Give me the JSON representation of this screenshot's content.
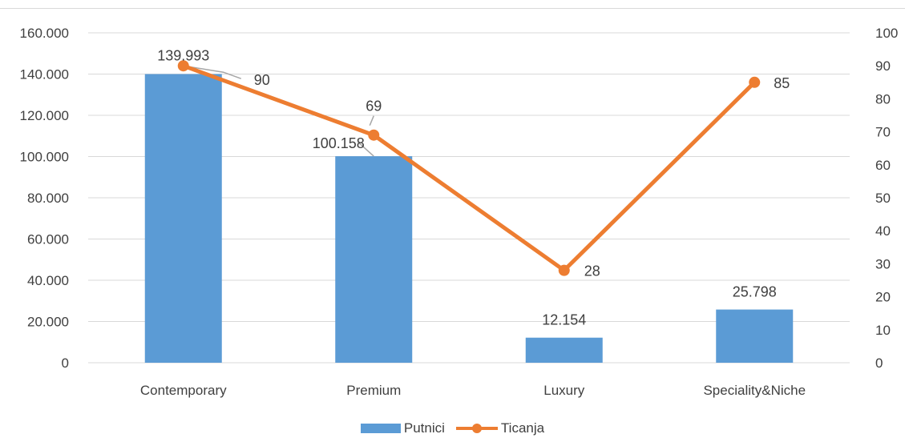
{
  "colors": {
    "bar": "#5B9BD5",
    "line": "#ED7D31",
    "grid": "#D9D9D9",
    "text": "#404040"
  },
  "chart_data": {
    "type": "bar",
    "categories": [
      "Contemporary",
      "Premium",
      "Luxury",
      "Speciality&Niche"
    ],
    "series": [
      {
        "name": "Putnici",
        "type": "bar",
        "axis": "left",
        "values": [
          139993,
          100158,
          12154,
          25798
        ],
        "labels": [
          "139.993",
          "100.158",
          "12.154",
          "25.798"
        ]
      },
      {
        "name": "Ticanja",
        "type": "line",
        "axis": "right",
        "values": [
          90,
          69,
          28,
          85
        ],
        "labels": [
          "90",
          "69",
          "28",
          "85"
        ]
      }
    ],
    "y_left": {
      "ylim": [
        0,
        160000
      ],
      "ticks": [
        0,
        20000,
        40000,
        60000,
        80000,
        100000,
        120000,
        140000,
        160000
      ],
      "tick_labels": [
        "0",
        "20.000",
        "40.000",
        "60.000",
        "80.000",
        "100.000",
        "120.000",
        "140.000",
        "160.000"
      ]
    },
    "y_right": {
      "ylim": [
        0,
        100
      ],
      "ticks": [
        0,
        10,
        20,
        30,
        40,
        50,
        60,
        70,
        80,
        90,
        100
      ],
      "tick_labels": [
        "0",
        "10",
        "20",
        "30",
        "40",
        "50",
        "60",
        "70",
        "80",
        "90",
        "100"
      ]
    },
    "grid": true,
    "legend_position": "bottom"
  }
}
